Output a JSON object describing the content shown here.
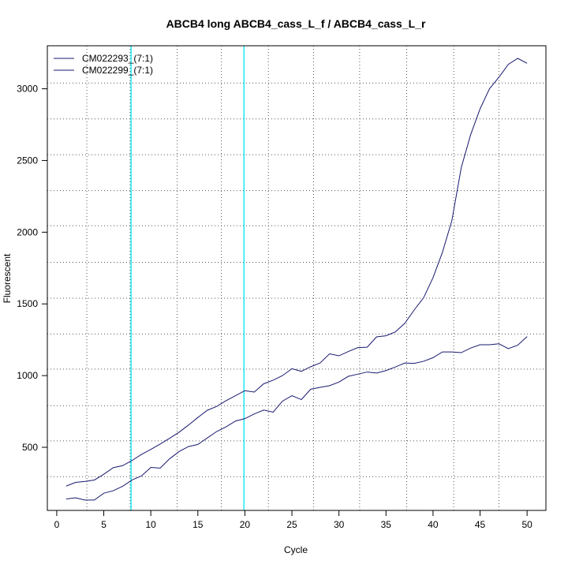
{
  "chart_data": {
    "type": "line",
    "title": "ABCB4 long ABCB4_cass_L_f / ABCB4_cass_L_r",
    "xlabel": "Cycle",
    "ylabel": "Fluorescent",
    "xlim": [
      -1,
      52
    ],
    "ylim": [
      60,
      3300
    ],
    "x_ticks": [
      0,
      5,
      10,
      15,
      20,
      25,
      30,
      35,
      40,
      45,
      50
    ],
    "y_ticks": [
      500,
      1000,
      1500,
      2000,
      2500,
      3000
    ],
    "grid_x": [
      3.2,
      7.8,
      12.8,
      17.5,
      22.5,
      27.3,
      32.2,
      37.2,
      42.2,
      47.0
    ],
    "grid_y": [
      295,
      545,
      790,
      1045,
      1290,
      1540,
      1790,
      2045,
      2290,
      2540,
      2790,
      3040
    ],
    "vlines": [
      7.9,
      19.9
    ],
    "vline_color": "#00e5ee",
    "legend_position": "top-left",
    "series": [
      {
        "name": "CM022293_(7:1)",
        "color": "#191970",
        "x": [
          1,
          2,
          3,
          4,
          5,
          6,
          7,
          8,
          9,
          10,
          11,
          12,
          13,
          14,
          15,
          16,
          17,
          18,
          19,
          20,
          21,
          22,
          23,
          24,
          25,
          26,
          27,
          28,
          29,
          30,
          31,
          32,
          33,
          34,
          35,
          36,
          37,
          38,
          39,
          40,
          41,
          42,
          43,
          44,
          45,
          46,
          47,
          48,
          49,
          50
        ],
        "values": [
          140,
          148,
          132,
          132,
          180,
          197,
          228,
          272,
          300,
          360,
          355,
          420,
          470,
          505,
          520,
          565,
          610,
          643,
          683,
          700,
          733,
          760,
          745,
          822,
          860,
          833,
          905,
          918,
          930,
          955,
          995,
          1010,
          1025,
          1018,
          1035,
          1060,
          1088,
          1085,
          1100,
          1125,
          1165,
          1165,
          1160,
          1192,
          1215,
          1215,
          1222,
          1188,
          1212,
          1272
        ]
      },
      {
        "name": "CM022299_(7:1)",
        "color": "#191970",
        "x": [
          1,
          2,
          3,
          4,
          5,
          6,
          7,
          8,
          9,
          10,
          11,
          12,
          13,
          14,
          15,
          16,
          17,
          18,
          19,
          20,
          21,
          22,
          23,
          24,
          25,
          26,
          27,
          28,
          29,
          30,
          31,
          32,
          33,
          34,
          35,
          36,
          37,
          38,
          39,
          40,
          41,
          42,
          43,
          44,
          45,
          46,
          47,
          48,
          49,
          50
        ],
        "values": [
          230,
          255,
          262,
          272,
          312,
          358,
          372,
          408,
          450,
          485,
          523,
          563,
          605,
          655,
          708,
          758,
          785,
          825,
          860,
          895,
          885,
          943,
          968,
          1000,
          1048,
          1030,
          1062,
          1088,
          1152,
          1138,
          1168,
          1195,
          1198,
          1270,
          1278,
          1305,
          1365,
          1458,
          1543,
          1683,
          1860,
          2080,
          2450,
          2680,
          2860,
          3000,
          3080,
          3170,
          3212,
          3178
        ]
      }
    ]
  }
}
